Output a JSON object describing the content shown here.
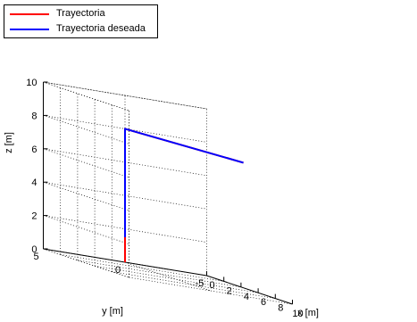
{
  "chart_data": {
    "type": "line",
    "projection": "3d",
    "xlabel": "x [m]",
    "ylabel": "y [m]",
    "zlabel": "z [m]",
    "xlim": [
      0,
      10
    ],
    "ylim": [
      -5,
      5
    ],
    "zlim": [
      0,
      10
    ],
    "x_ticks": [
      0,
      2,
      4,
      6,
      8,
      10
    ],
    "y_ticks": [
      -5,
      0,
      5
    ],
    "z_ticks": [
      0,
      2,
      4,
      6,
      8,
      10
    ],
    "x_tick_labels": [
      "0",
      "2",
      "4",
      "6",
      "8",
      "10"
    ],
    "y_tick_labels": [
      "-5",
      "0",
      "5"
    ],
    "z_tick_labels": [
      "0",
      "2",
      "4",
      "6",
      "8",
      "10"
    ],
    "grid": true,
    "legend_position": "top-left",
    "series": [
      {
        "name": "Trayectoria",
        "color": "#ff0000",
        "points": [
          [
            0,
            0,
            0
          ],
          [
            0,
            0,
            8
          ],
          [
            10,
            -2,
            8
          ]
        ]
      },
      {
        "name": "Trayectoria deseada",
        "color": "#0000ff",
        "points": [
          [
            0,
            0,
            1.5
          ],
          [
            0,
            0,
            8
          ],
          [
            10,
            -2,
            8
          ]
        ]
      }
    ]
  }
}
